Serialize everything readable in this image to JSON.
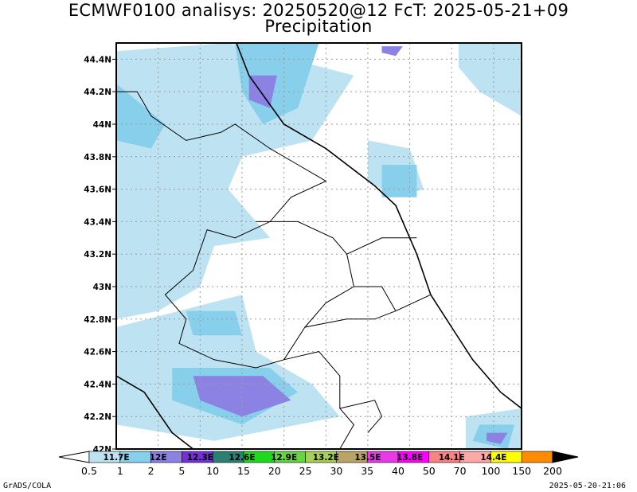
{
  "header": {
    "title": "ECMWF0100 analisys: 20250520@12 FcT: 2025-05-21+09",
    "subtitle": "Precipitation"
  },
  "footer": {
    "credit": "GrADS/COLA",
    "timestamp": "2025-05-20-21:06"
  },
  "chart_data": {
    "type": "heatmap",
    "title": "Precipitation",
    "y_axis_ticks": [
      "42N",
      "42.2N",
      "42.4N",
      "42.6N",
      "42.8N",
      "43N",
      "43.2N",
      "43.4N",
      "43.6N",
      "43.8N",
      "44N",
      "44.2N",
      "44.4N"
    ],
    "y_axis_values": [
      42.0,
      42.2,
      42.4,
      42.6,
      42.8,
      43.0,
      43.2,
      43.4,
      43.6,
      43.8,
      44.0,
      44.2,
      44.4
    ],
    "ylim": [
      42.0,
      44.5
    ],
    "x_axis_ticks_printed_on_colorbar": [
      "11.7E",
      "12E",
      "12.3E",
      "12.6E",
      "12.9E",
      "13.2E",
      "13.5E",
      "13.8E",
      "14.1E",
      "14.4E"
    ],
    "x_axis_values": [
      11.7,
      12.0,
      12.3,
      12.6,
      12.9,
      13.2,
      13.5,
      13.8,
      14.1,
      14.4
    ],
    "xlim": [
      11.7,
      14.6
    ],
    "grid": true,
    "colorbar": {
      "levels": [
        "0.5",
        "1",
        "2",
        "5",
        "10",
        "15",
        "20",
        "25",
        "30",
        "35",
        "40",
        "50",
        "70",
        "100",
        "150",
        "200"
      ],
      "colors": [
        "#ffffff",
        "#bde3f2",
        "#87cfea",
        "#8c82e3",
        "#7630d9",
        "#2b7f73",
        "#1fd91f",
        "#67d443",
        "#a8cf58",
        "#b8a467",
        "#e83ae8",
        "#ff00ff",
        "#fb8282",
        "#ffa8a8",
        "#ffff00",
        "#ff8c00",
        "#e52222",
        "#8b0000",
        "#000000"
      ]
    },
    "rain_areas": [
      {
        "level": "0.5-1",
        "points": [
          [
            11.7,
            44.45
          ],
          [
            12.5,
            44.5
          ],
          [
            13.4,
            44.3
          ],
          [
            13.1,
            43.9
          ],
          [
            12.6,
            43.8
          ],
          [
            12.5,
            43.6
          ],
          [
            12.8,
            43.3
          ],
          [
            12.4,
            43.25
          ],
          [
            12.3,
            43.0
          ],
          [
            12.0,
            42.85
          ],
          [
            11.7,
            42.8
          ]
        ]
      },
      {
        "level": "0.5-1",
        "points": [
          [
            11.7,
            42.75
          ],
          [
            12.6,
            42.95
          ],
          [
            12.7,
            42.6
          ],
          [
            13.1,
            42.4
          ],
          [
            13.3,
            42.2
          ],
          [
            12.4,
            42.05
          ],
          [
            11.7,
            42.15
          ]
        ]
      },
      {
        "level": "0.5-1",
        "points": [
          [
            14.2,
            42.2
          ],
          [
            14.6,
            42.25
          ],
          [
            14.6,
            42.0
          ],
          [
            14.2,
            42.0
          ]
        ]
      },
      {
        "level": "0.5-1",
        "points": [
          [
            13.5,
            43.9
          ],
          [
            13.8,
            43.85
          ],
          [
            13.9,
            43.6
          ],
          [
            13.7,
            43.55
          ],
          [
            13.5,
            43.65
          ]
        ]
      },
      {
        "level": "0.5-1",
        "points": [
          [
            14.15,
            44.5
          ],
          [
            14.6,
            44.5
          ],
          [
            14.6,
            44.05
          ],
          [
            14.3,
            44.2
          ],
          [
            14.15,
            44.35
          ]
        ]
      },
      {
        "level": "1-2",
        "points": [
          [
            12.55,
            44.5
          ],
          [
            13.15,
            44.5
          ],
          [
            13.0,
            44.1
          ],
          [
            12.75,
            44.0
          ],
          [
            12.6,
            44.2
          ]
        ]
      },
      {
        "level": "1-2",
        "points": [
          [
            11.7,
            44.25
          ],
          [
            12.05,
            44.0
          ],
          [
            11.95,
            43.85
          ],
          [
            11.7,
            43.9
          ]
        ]
      },
      {
        "level": "1-2",
        "points": [
          [
            12.2,
            42.85
          ],
          [
            12.55,
            42.85
          ],
          [
            12.6,
            42.7
          ],
          [
            12.25,
            42.7
          ]
        ]
      },
      {
        "level": "1-2",
        "points": [
          [
            12.1,
            42.5
          ],
          [
            12.8,
            42.5
          ],
          [
            13.0,
            42.35
          ],
          [
            12.6,
            42.15
          ],
          [
            12.1,
            42.3
          ]
        ]
      },
      {
        "level": "1-2",
        "points": [
          [
            13.6,
            43.75
          ],
          [
            13.85,
            43.75
          ],
          [
            13.85,
            43.55
          ],
          [
            13.6,
            43.55
          ]
        ]
      },
      {
        "level": "1-2",
        "points": [
          [
            14.3,
            42.15
          ],
          [
            14.55,
            42.15
          ],
          [
            14.5,
            42.0
          ],
          [
            14.25,
            42.05
          ]
        ]
      },
      {
        "level": "2-5",
        "points": [
          [
            12.65,
            44.3
          ],
          [
            12.85,
            44.3
          ],
          [
            12.8,
            44.1
          ],
          [
            12.65,
            44.15
          ]
        ]
      },
      {
        "level": "2-5",
        "points": [
          [
            12.25,
            42.45
          ],
          [
            12.75,
            42.45
          ],
          [
            12.95,
            42.3
          ],
          [
            12.6,
            42.2
          ],
          [
            12.3,
            42.3
          ]
        ]
      },
      {
        "level": "2-5",
        "points": [
          [
            14.35,
            42.1
          ],
          [
            14.5,
            42.1
          ],
          [
            14.45,
            42.03
          ],
          [
            14.35,
            42.05
          ]
        ]
      },
      {
        "level": "2-5",
        "points": [
          [
            13.6,
            44.48
          ],
          [
            13.75,
            44.48
          ],
          [
            13.7,
            44.42
          ],
          [
            13.6,
            44.44
          ]
        ]
      }
    ],
    "coastline_points": [
      [
        12.56,
        44.5
      ],
      [
        12.65,
        44.3
      ],
      [
        12.9,
        44.0
      ],
      [
        13.2,
        43.85
      ],
      [
        13.55,
        43.62
      ],
      [
        13.7,
        43.5
      ],
      [
        13.85,
        43.2
      ],
      [
        13.95,
        42.95
      ],
      [
        14.1,
        42.75
      ],
      [
        14.25,
        42.55
      ],
      [
        14.45,
        42.35
      ],
      [
        14.6,
        42.25
      ]
    ],
    "tyrrhenian_coast_points": [
      [
        11.7,
        42.45
      ],
      [
        11.9,
        42.35
      ],
      [
        12.1,
        42.1
      ],
      [
        12.25,
        42.0
      ]
    ],
    "region_borders": [
      [
        [
          11.7,
          44.2
        ],
        [
          11.85,
          44.2
        ],
        [
          11.95,
          44.05
        ],
        [
          12.2,
          43.9
        ],
        [
          12.45,
          43.95
        ],
        [
          12.55,
          44.0
        ],
        [
          12.8,
          43.85
        ],
        [
          13.0,
          43.75
        ],
        [
          13.2,
          43.65
        ],
        [
          12.95,
          43.55
        ],
        [
          12.8,
          43.4
        ],
        [
          12.55,
          43.3
        ],
        [
          12.35,
          43.35
        ],
        [
          12.25,
          43.1
        ],
        [
          12.05,
          42.95
        ],
        [
          12.2,
          42.8
        ],
        [
          12.15,
          42.65
        ],
        [
          12.4,
          42.55
        ],
        [
          12.7,
          42.5
        ],
        [
          12.9,
          42.55
        ],
        [
          13.05,
          42.75
        ],
        [
          13.35,
          42.8
        ],
        [
          13.55,
          42.8
        ],
        [
          13.7,
          42.85
        ],
        [
          13.95,
          42.95
        ]
      ],
      [
        [
          12.7,
          43.4
        ],
        [
          13.0,
          43.4
        ],
        [
          13.25,
          43.3
        ],
        [
          13.35,
          43.2
        ],
        [
          13.4,
          43.0
        ],
        [
          13.2,
          42.9
        ],
        [
          13.05,
          42.75
        ]
      ],
      [
        [
          13.35,
          43.2
        ],
        [
          13.6,
          43.3
        ],
        [
          13.85,
          43.3
        ]
      ],
      [
        [
          13.4,
          43.0
        ],
        [
          13.6,
          43.0
        ],
        [
          13.7,
          42.85
        ]
      ],
      [
        [
          12.9,
          42.55
        ],
        [
          13.15,
          42.6
        ],
        [
          13.3,
          42.45
        ],
        [
          13.3,
          42.25
        ],
        [
          13.4,
          42.15
        ],
        [
          13.3,
          42.0
        ]
      ],
      [
        [
          13.3,
          42.25
        ],
        [
          13.55,
          42.3
        ],
        [
          13.6,
          42.2
        ],
        [
          13.5,
          42.1
        ]
      ]
    ]
  }
}
